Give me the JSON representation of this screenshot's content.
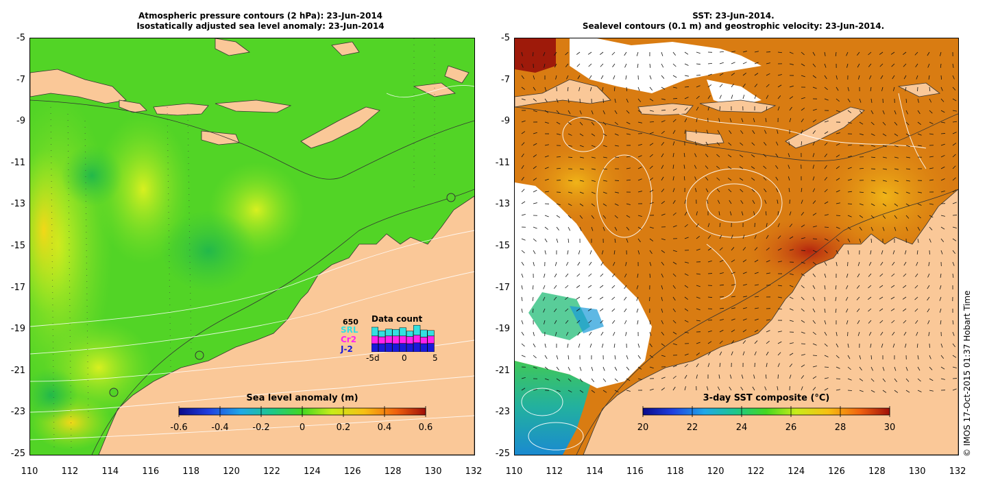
{
  "left_panel": {
    "title_line1": "Atmospheric pressure contours (2 hPa): 23-Jun-2014",
    "title_line2": "Isostatically adjusted sea level anomaly: 23-Jun-2014",
    "y_ticks": [
      "-5",
      "-7",
      "-9",
      "-11",
      "-13",
      "-15",
      "-17",
      "-19",
      "-21",
      "-23",
      "-25"
    ],
    "x_ticks": [
      "110",
      "112",
      "114",
      "116",
      "118",
      "120",
      "122",
      "124",
      "126",
      "128",
      "130",
      "132"
    ],
    "colorbar": {
      "label": "Sea level anomaly (m)",
      "ticks": [
        "-0.6",
        "-0.4",
        "-0.2",
        "0",
        "0.2",
        "0.4",
        "0.6"
      ],
      "range": [
        -0.6,
        0.6
      ]
    },
    "legend": {
      "max_label": "650",
      "title": "Data count",
      "series": [
        {
          "name": "SRL",
          "color": "#33e0e0"
        },
        {
          "name": "Cr2",
          "color": "#ff22ee"
        },
        {
          "name": "J-2",
          "color": "#1a1ad8"
        }
      ],
      "x_axis": [
        "-5d",
        "0",
        "5"
      ],
      "bars": [
        {
          "j2": 0.3,
          "cr2": 0.28,
          "srl": 0.32
        },
        {
          "j2": 0.3,
          "cr2": 0.25,
          "srl": 0.22
        },
        {
          "j2": 0.32,
          "cr2": 0.26,
          "srl": 0.25
        },
        {
          "j2": 0.3,
          "cr2": 0.28,
          "srl": 0.24
        },
        {
          "j2": 0.31,
          "cr2": 0.27,
          "srl": 0.3
        },
        {
          "j2": 0.3,
          "cr2": 0.26,
          "srl": 0.2
        },
        {
          "j2": 0.33,
          "cr2": 0.28,
          "srl": 0.36
        },
        {
          "j2": 0.3,
          "cr2": 0.24,
          "srl": 0.26
        },
        {
          "j2": 0.31,
          "cr2": 0.27,
          "srl": 0.2
        }
      ]
    }
  },
  "right_panel": {
    "title_line1": "SST: 23-Jun-2014.",
    "title_line2": "Sealevel contours (0.1 m) and geostrophic velocity: 23-Jun-2014.",
    "y_ticks": [
      "-5",
      "-7",
      "-9",
      "-11",
      "-13",
      "-15",
      "-17",
      "-19",
      "-21",
      "-23",
      "-25"
    ],
    "x_ticks": [
      "110",
      "112",
      "114",
      "116",
      "118",
      "120",
      "122",
      "124",
      "126",
      "128",
      "130",
      "132"
    ],
    "colorbar": {
      "label": "3-day SST composite (°C)",
      "ticks": [
        "20",
        "22",
        "24",
        "26",
        "28",
        "30"
      ],
      "range": [
        20,
        30
      ]
    }
  },
  "credit": "© IMOS 17-Oct-2015 01:37 Hobart Time",
  "colors": {
    "land": "#fac898",
    "ocean_green": "#4ed422",
    "sst_orange": "#e08a12",
    "missing": "#ffffff"
  }
}
